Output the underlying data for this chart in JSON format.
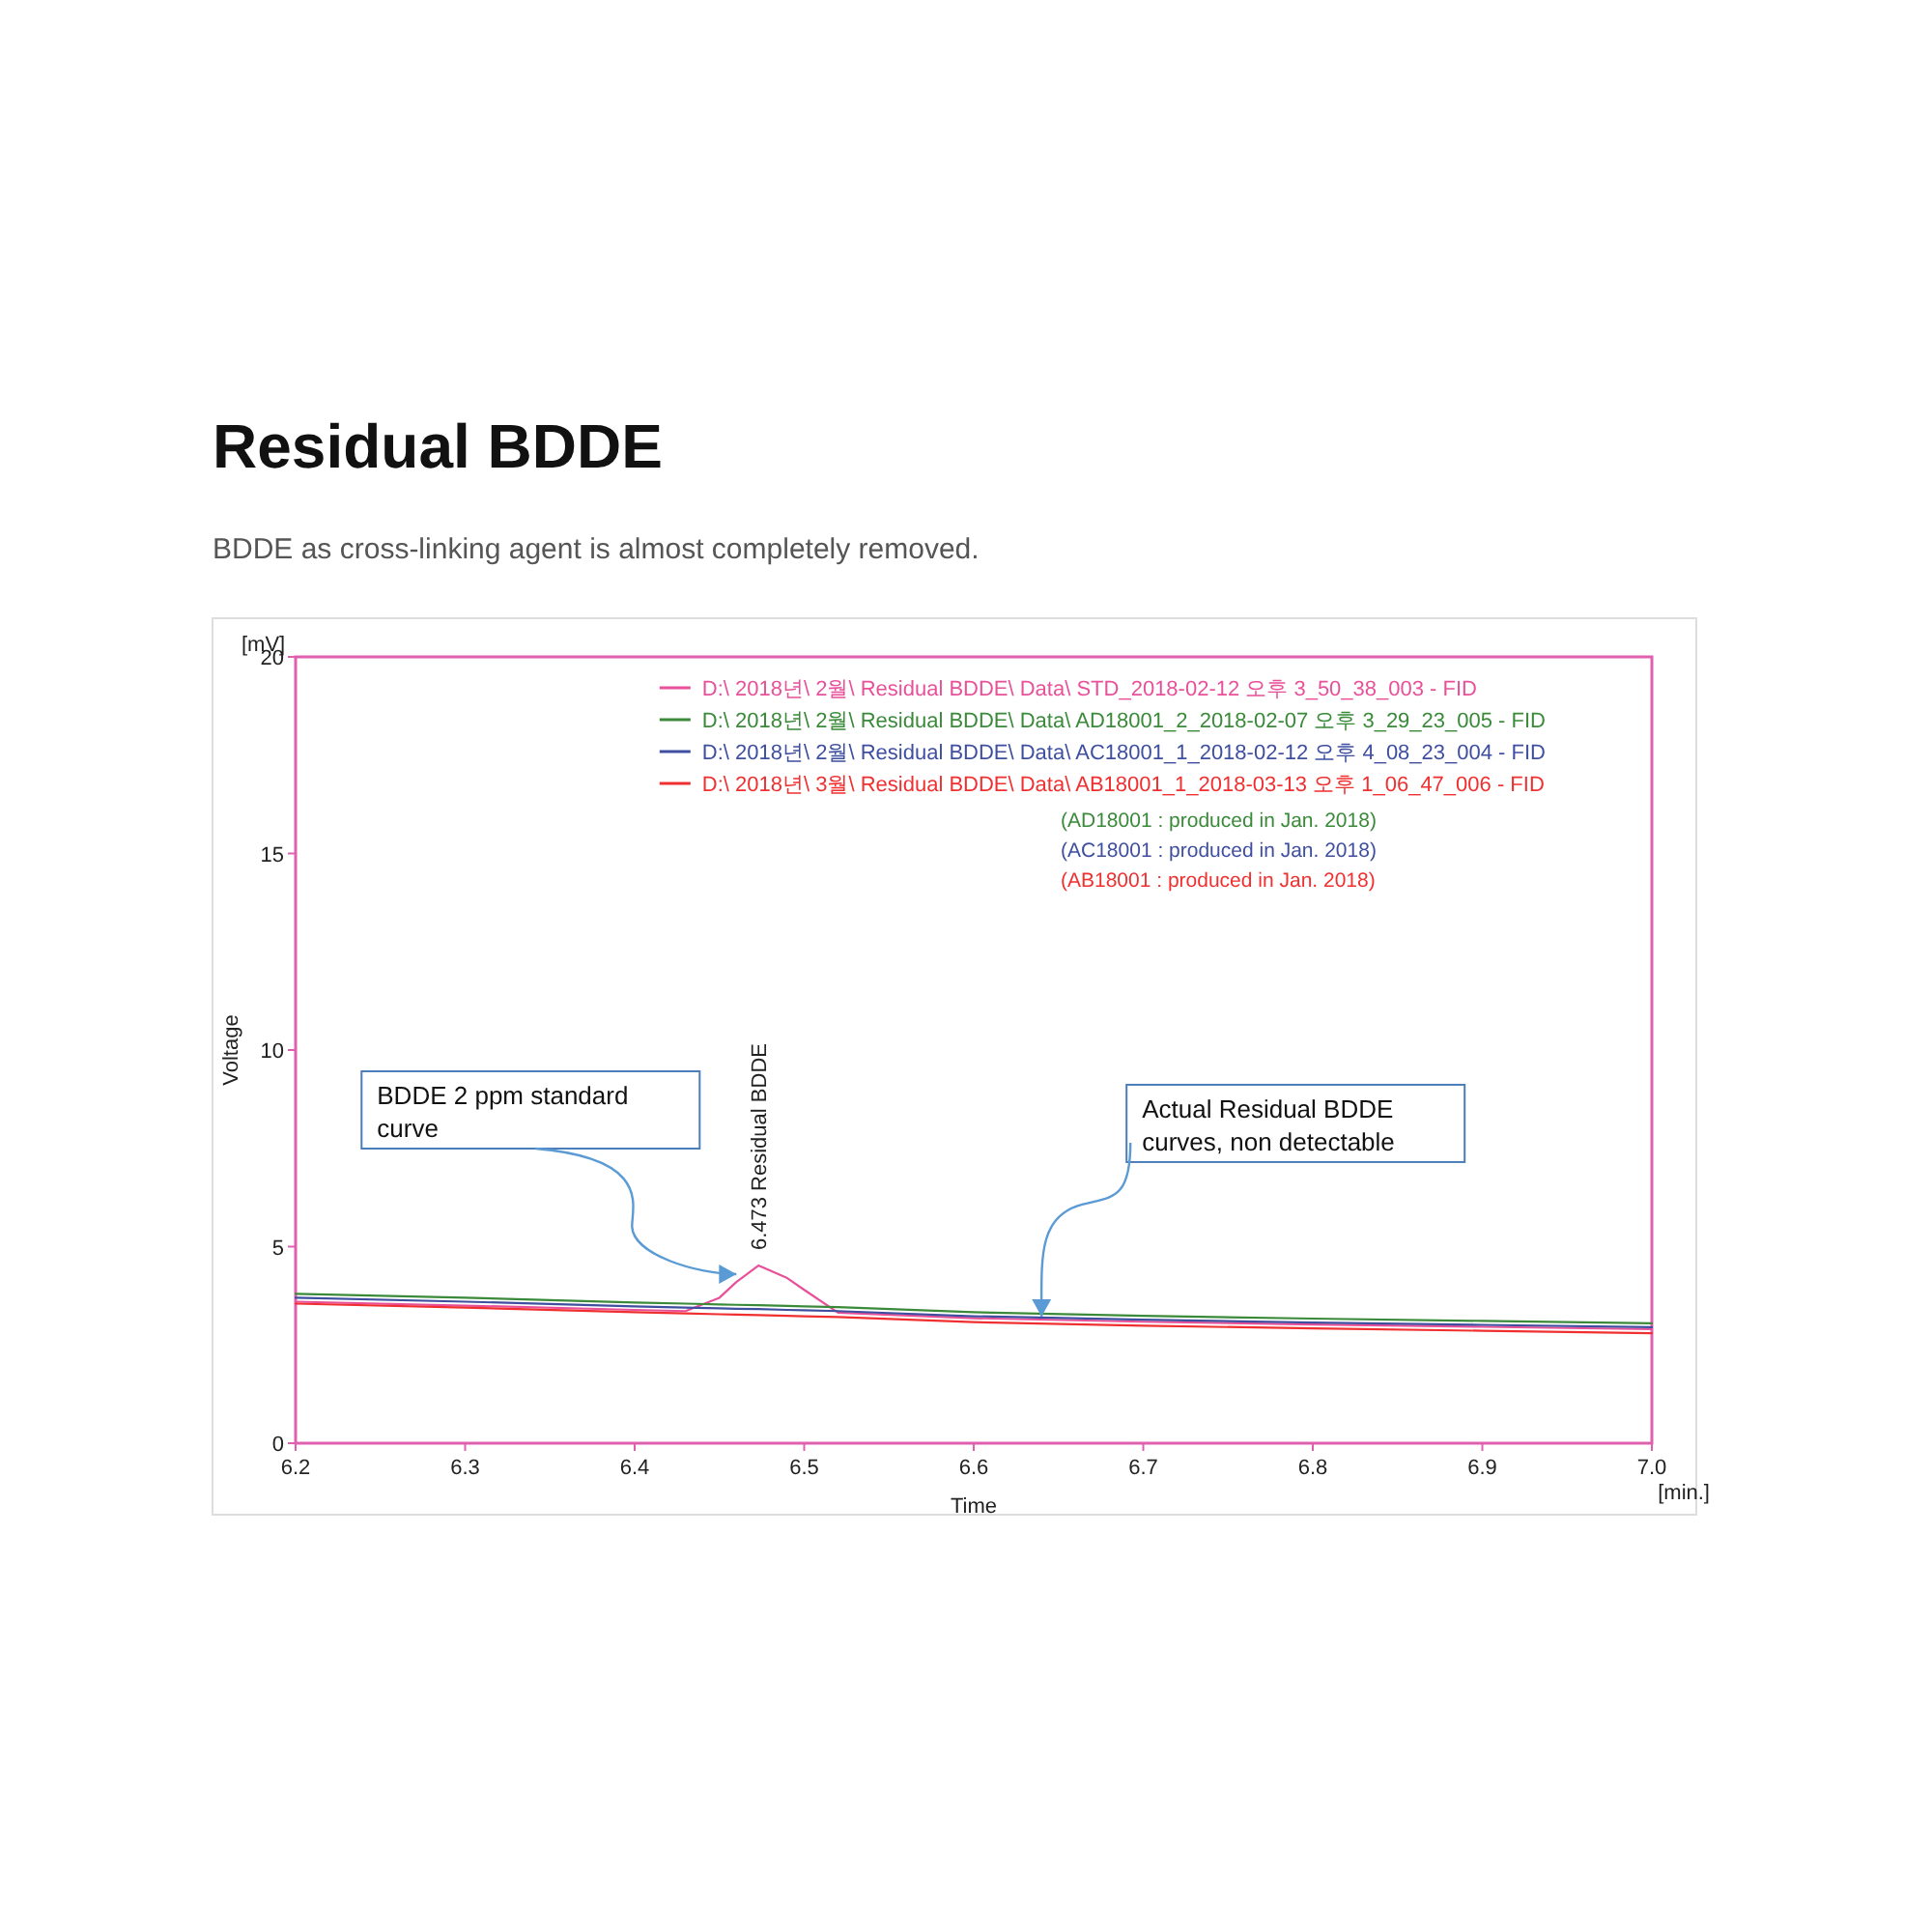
{
  "chart_data": {
    "type": "line",
    "title": "Residual BDDE",
    "subtitle": "BDDE as cross-linking agent is almost completely removed.",
    "xlabel": "Time",
    "ylabel": "Voltage",
    "x": [
      6.2,
      6.3,
      6.4,
      6.43,
      6.45,
      6.46,
      6.473,
      6.49,
      6.5,
      6.52,
      6.6,
      6.7,
      6.8,
      6.9,
      7.0
    ],
    "series": [
      {
        "name": "D:\\  2018년\\  2월\\  Residual BDDE\\  Data\\  STD_2018-02-12 오후 3_50_38_003 - FID",
        "color": "#e8519a",
        "values": [
          3.6,
          3.5,
          3.39,
          3.36,
          3.7,
          4.1,
          4.52,
          4.2,
          3.9,
          3.32,
          3.18,
          3.09,
          3.02,
          2.96,
          2.9
        ]
      },
      {
        "name": "D:\\  2018년\\  2월\\  Residual BDDE\\  Data\\  AD18001_2_2018-02-07 오후 3_29_23_005 - FID",
        "color": "#3a8a3a",
        "values": [
          3.8,
          3.7,
          3.58,
          3.55,
          3.53,
          3.52,
          3.51,
          3.49,
          3.48,
          3.46,
          3.33,
          3.24,
          3.17,
          3.11,
          3.05
        ]
      },
      {
        "name": "D:\\  2018년\\  2월\\  Residual BDDE\\  Data\\  AC18001_1_2018-02-12 오후 4_08_23_004 - FID",
        "color": "#3f4fa0",
        "values": [
          3.7,
          3.6,
          3.48,
          3.45,
          3.43,
          3.42,
          3.41,
          3.39,
          3.38,
          3.36,
          3.23,
          3.14,
          3.07,
          3.01,
          2.95
        ]
      },
      {
        "name": "D:\\  2018년\\  3월\\  Residual BDDE\\  Data\\  AB18001_1_2018-03-13 오후 1_06_47_006 - FID",
        "color": "#f03030",
        "values": [
          3.55,
          3.45,
          3.33,
          3.3,
          3.28,
          3.27,
          3.26,
          3.24,
          3.23,
          3.21,
          3.08,
          2.99,
          2.92,
          2.86,
          2.8
        ]
      }
    ],
    "xlim": [
      6.2,
      7.0
    ],
    "xticks": [
      6.2,
      6.3,
      6.4,
      6.5,
      6.6,
      6.7,
      6.8,
      6.9,
      {
        "value": 7.0,
        "label": "7.0"
      }
    ],
    "ylim": [
      0,
      20
    ],
    "yticks": [
      0,
      5,
      10,
      15,
      20
    ],
    "grid": false,
    "legend": "top right",
    "marker": "none",
    "line_style": "solid",
    "annotations": [
      "[mV]",
      "[min.]",
      "(AD18001 : produced in Jan. 2018)",
      "(AC18001 : produced in Jan. 2018)",
      "(AB18001 : produced in Jan. 2018)",
      {
        "text": "6.473 Residual BDDE",
        "x": 6.473,
        "y": 4.52
      },
      {
        "text": "BDDE 2 ppm standard curve",
        "x": 6.46,
        "y": 4.3
      },
      {
        "text": "Actual Residual BDDE curves, non detectable",
        "x": 6.64,
        "y": 3.22
      }
    ]
  }
}
